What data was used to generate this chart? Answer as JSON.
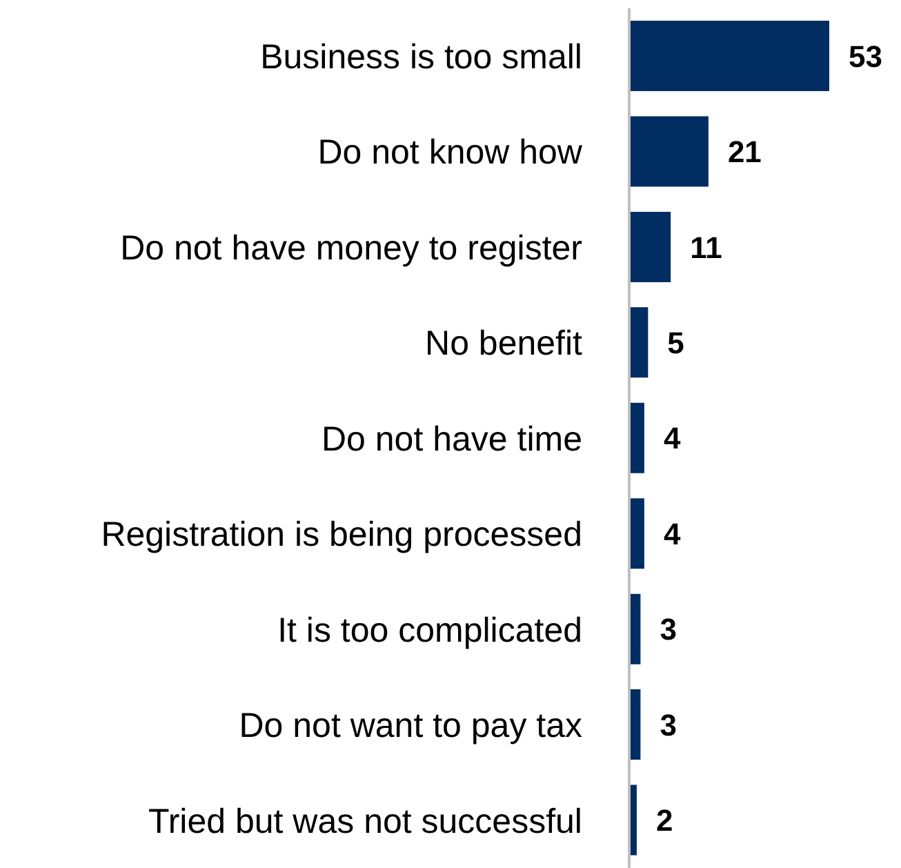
{
  "chart_data": {
    "type": "bar",
    "orientation": "horizontal",
    "categories": [
      "Business is too small",
      "Do not know how",
      "Do not have money to register",
      "No benefit",
      "Do not have time",
      "Registration is being processed",
      "It is too complicated",
      "Do not want to pay tax",
      "Tried but was not successful"
    ],
    "values": [
      53,
      21,
      11,
      5,
      4,
      4,
      3,
      3,
      2
    ],
    "color": "#002d62",
    "data_labels": true,
    "grid": false,
    "legend": false
  }
}
